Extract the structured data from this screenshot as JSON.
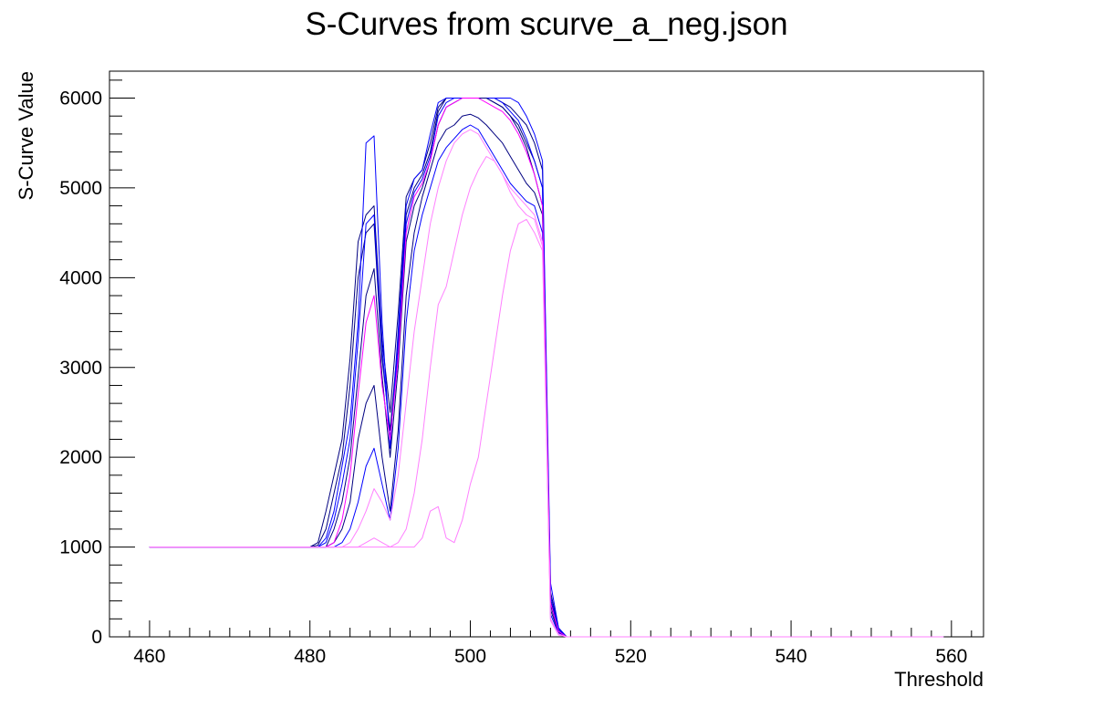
{
  "chart_data": {
    "type": "line",
    "title": "S-Curves from scurve_a_neg.json",
    "xlabel": "Threshold",
    "ylabel": "S-Curve Value",
    "xlim": [
      455,
      564
    ],
    "ylim": [
      0,
      6300
    ],
    "x_ticks": [
      460,
      480,
      500,
      520,
      540,
      560
    ],
    "y_ticks": [
      0,
      1000,
      2000,
      3000,
      4000,
      5000,
      6000
    ],
    "grid": false,
    "legend": "none",
    "colors": {
      "navy": "#000080",
      "blue": "#0000ff",
      "magenta": "#ff00ff",
      "pink": "#ff80ff"
    },
    "x": [
      460,
      480,
      481,
      482,
      483,
      484,
      485,
      486,
      487,
      488,
      489,
      490,
      491,
      492,
      493,
      494,
      495,
      496,
      497,
      498,
      499,
      500,
      501,
      502,
      503,
      504,
      505,
      506,
      507,
      508,
      509,
      510,
      511,
      512,
      513,
      559
    ],
    "series": [
      {
        "color": "#000080",
        "values": [
          1000,
          1000,
          1050,
          1400,
          1800,
          2200,
          3100,
          4400,
          4700,
          4800,
          3300,
          2500,
          3600,
          4900,
          5100,
          5200,
          5500,
          5900,
          6000,
          6000,
          6000,
          6000,
          6000,
          6000,
          5950,
          5900,
          5800,
          5700,
          5500,
          5300,
          5000,
          500,
          100,
          0,
          0,
          0
        ]
      },
      {
        "color": "#000080",
        "values": [
          1000,
          1000,
          1020,
          1200,
          1600,
          2000,
          2800,
          4000,
          4500,
          4600,
          3100,
          2300,
          3300,
          4700,
          5000,
          5150,
          5400,
          5850,
          6000,
          6000,
          6000,
          6000,
          6000,
          6000,
          6000,
          5950,
          5900,
          5800,
          5700,
          5500,
          5200,
          400,
          80,
          0,
          0,
          0
        ]
      },
      {
        "color": "#0000ff",
        "values": [
          1000,
          1000,
          1000,
          1100,
          1400,
          1900,
          2400,
          3500,
          5500,
          5580,
          3500,
          2100,
          3400,
          4800,
          5100,
          5200,
          5600,
          5950,
          6000,
          6000,
          6000,
          6000,
          6000,
          6000,
          6000,
          6000,
          6000,
          5950,
          5800,
          5600,
          5300,
          600,
          100,
          0,
          0,
          0
        ]
      },
      {
        "color": "#0000ff",
        "values": [
          1000,
          1000,
          1000,
          1050,
          1300,
          1700,
          2200,
          3300,
          4600,
          4700,
          3200,
          2200,
          3200,
          4600,
          4950,
          5100,
          5350,
          5800,
          5950,
          6000,
          6000,
          6000,
          6000,
          6000,
          6000,
          5950,
          5850,
          5750,
          5550,
          5300,
          5000,
          450,
          80,
          0,
          0,
          0
        ]
      },
      {
        "color": "#000080",
        "values": [
          1000,
          1000,
          1000,
          1000,
          1200,
          1500,
          2000,
          2900,
          3800,
          4100,
          2900,
          2000,
          3000,
          4400,
          4800,
          5000,
          5300,
          5700,
          5900,
          5950,
          6000,
          6000,
          6000,
          6000,
          5950,
          5900,
          5800,
          5650,
          5450,
          5150,
          4800,
          350,
          60,
          0,
          0,
          0
        ]
      },
      {
        "color": "#000080",
        "values": [
          1000,
          1000,
          1000,
          1000,
          1050,
          1200,
          1500,
          2200,
          2600,
          2800,
          2000,
          1400,
          2300,
          3800,
          4500,
          4900,
          5200,
          5500,
          5650,
          5700,
          5800,
          5820,
          5780,
          5700,
          5600,
          5500,
          5350,
          5200,
          5050,
          4950,
          4700,
          300,
          50,
          0,
          0,
          0
        ]
      },
      {
        "color": "#0000ff",
        "values": [
          1000,
          1000,
          1000,
          1000,
          1000,
          1050,
          1200,
          1500,
          1900,
          2100,
          1700,
          1300,
          2100,
          3500,
          4300,
          4700,
          5000,
          5300,
          5450,
          5550,
          5650,
          5700,
          5650,
          5500,
          5350,
          5200,
          5050,
          4950,
          4850,
          4800,
          4500,
          250,
          40,
          0,
          0,
          0
        ]
      },
      {
        "color": "#ff00ff",
        "values": [
          1000,
          1000,
          1000,
          1000,
          1050,
          1300,
          1800,
          2700,
          3500,
          3800,
          2800,
          2200,
          3100,
          4500,
          4900,
          5050,
          5300,
          5700,
          5900,
          5950,
          6000,
          6000,
          6000,
          5950,
          5900,
          5850,
          5750,
          5600,
          5400,
          5150,
          4800,
          380,
          60,
          0,
          0,
          0
        ]
      },
      {
        "color": "#ff80ff",
        "values": [
          1000,
          1000,
          1000,
          1000,
          1000,
          1000,
          1050,
          1200,
          1400,
          1650,
          1500,
          1300,
          1800,
          2600,
          3400,
          4000,
          4600,
          5000,
          5300,
          5500,
          5600,
          5650,
          5600,
          5450,
          5300,
          5150,
          5000,
          4900,
          4800,
          4700,
          4400,
          200,
          30,
          0,
          0,
          0
        ]
      },
      {
        "color": "#ff80ff",
        "values": [
          1000,
          1000,
          1000,
          1000,
          1000,
          1000,
          1000,
          1000,
          1050,
          1100,
          1050,
          1000,
          1050,
          1200,
          1600,
          2200,
          3000,
          3700,
          3900,
          4300,
          4700,
          5000,
          5200,
          5350,
          5300,
          5150,
          4950,
          4800,
          4700,
          4650,
          4350,
          200,
          30,
          0,
          0,
          0
        ]
      },
      {
        "color": "#ff80ff",
        "values": [
          1000,
          1000,
          1000,
          1000,
          1000,
          1000,
          1000,
          1000,
          1000,
          1000,
          1000,
          1000,
          1000,
          1000,
          1000,
          1100,
          1400,
          1450,
          1100,
          1050,
          1300,
          1700,
          2000,
          2600,
          3200,
          3800,
          4300,
          4600,
          4650,
          4500,
          4300,
          180,
          20,
          0,
          0,
          0
        ]
      }
    ]
  }
}
